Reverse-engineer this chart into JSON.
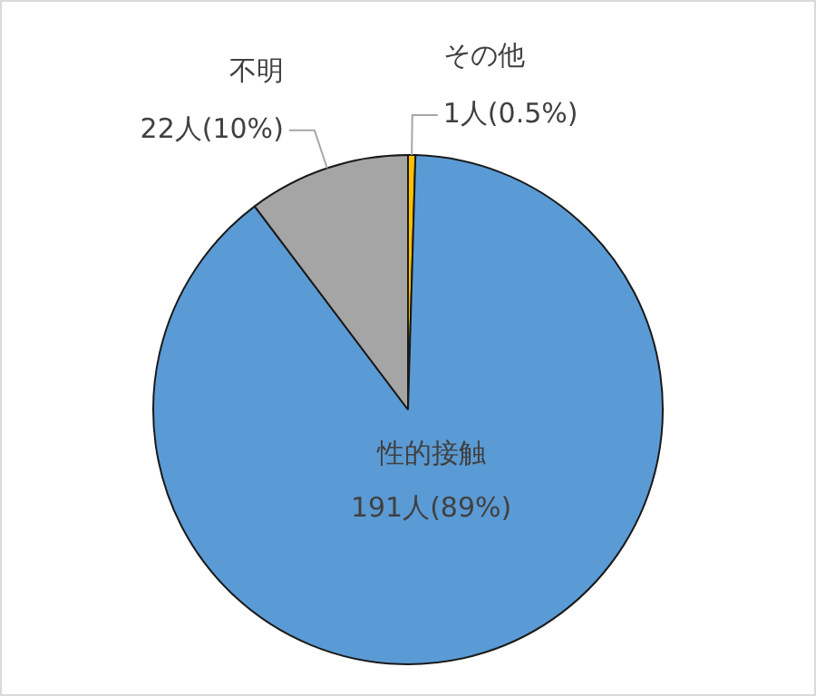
{
  "chart_data": {
    "type": "pie",
    "categories": [
      "その他",
      "性的接触",
      "不明"
    ],
    "values": [
      1,
      191,
      22
    ],
    "colors": [
      "#ffc000",
      "#5b9bd5",
      "#a5a5a5"
    ],
    "value_labels": [
      "1人(0.5%)",
      "191人(89%)",
      "22人(10%)"
    ]
  }
}
